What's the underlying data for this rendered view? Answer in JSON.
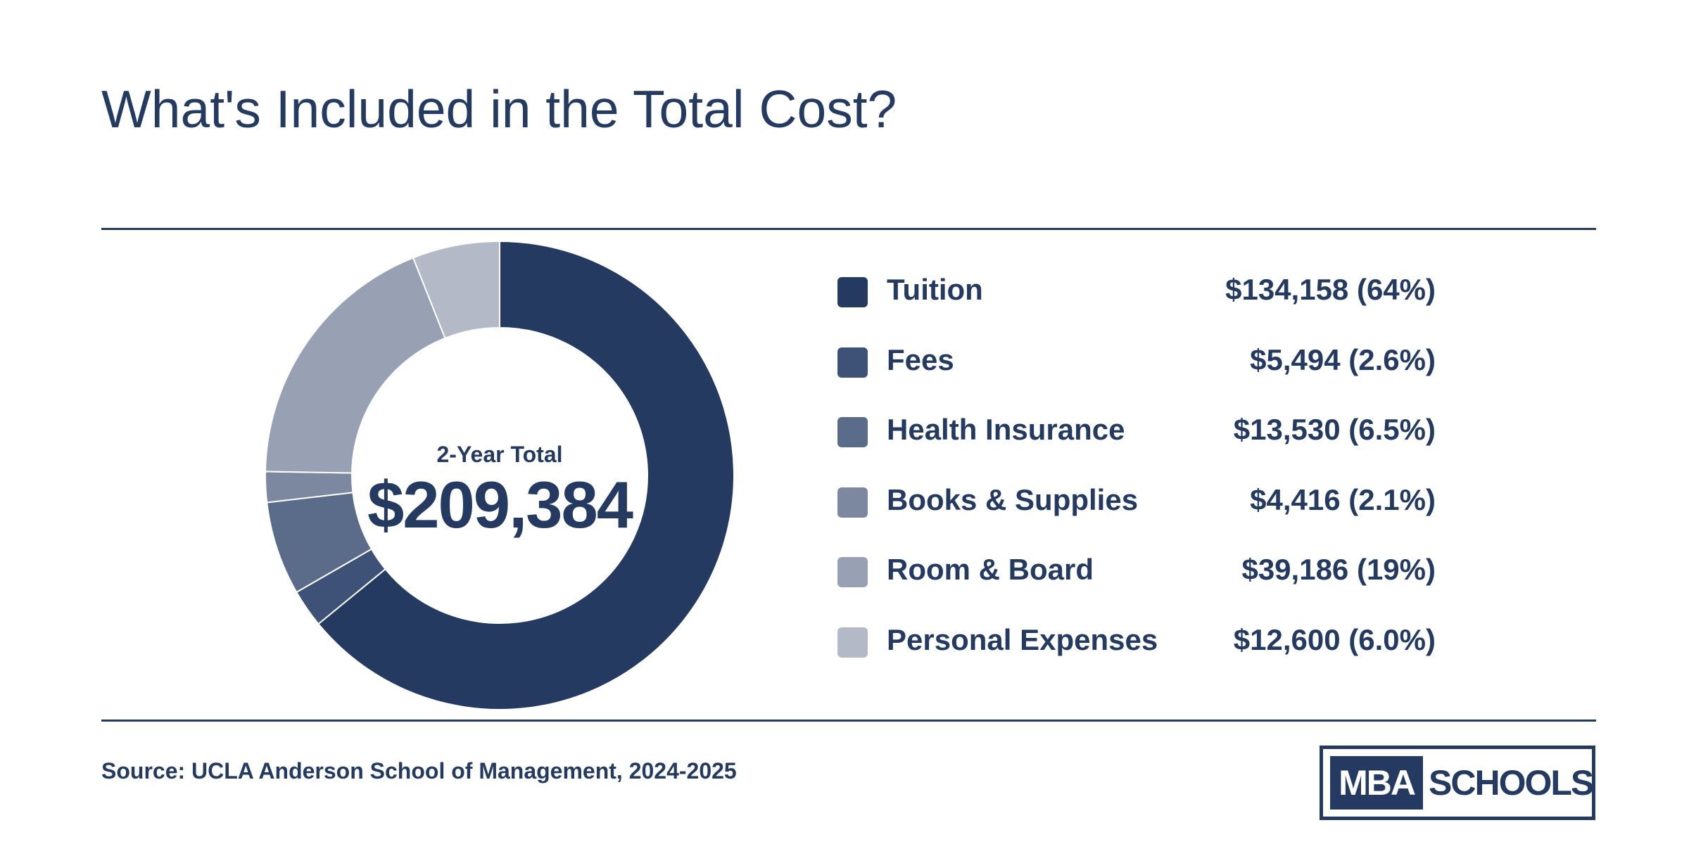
{
  "title": "What's Included in the Total Cost?",
  "center": {
    "label": "2-Year Total",
    "value": "$209,384"
  },
  "source": "Source: UCLA Anderson School of Management, 2024-2025",
  "logo": {
    "part1": "MBA",
    "part2": "SCHOOLS"
  },
  "colors": {
    "text": "#243a61",
    "rule": "#243a61",
    "slice_border": "#ffffff"
  },
  "chart_data": {
    "type": "pie",
    "variant": "donut",
    "title": "What's Included in the Total Cost?",
    "total": 209384,
    "categories": [
      "Tuition",
      "Fees",
      "Health Insurance",
      "Books & Supplies",
      "Room & Board",
      "Personal Expenses"
    ],
    "values": [
      134158,
      5494,
      13530,
      4416,
      39186,
      12600
    ],
    "value_labels": [
      "$134,158 (64%)",
      "$5,494 (2.6%)",
      "$13,530 (6.5%)",
      "$4,416 (2.1%)",
      "$39,186 (19%)",
      "$12,600 (6.0%)"
    ],
    "colors": [
      "#243a61",
      "#3e5177",
      "#5b6b8a",
      "#7c889f",
      "#97a1b3",
      "#b3b9c6"
    ],
    "start_angle_deg": 0,
    "direction": "clockwise",
    "legend_position": "right"
  }
}
